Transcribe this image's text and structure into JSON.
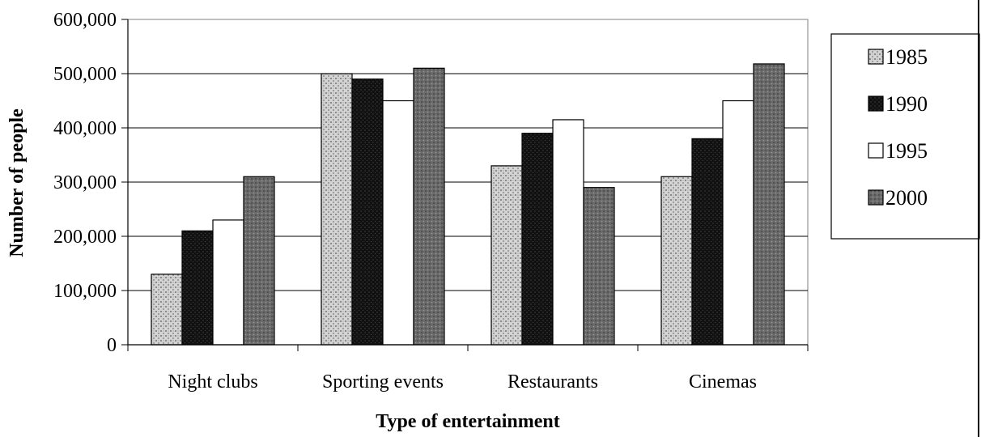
{
  "chart_data": {
    "type": "bar",
    "title": "",
    "xlabel": "Type of entertainment",
    "ylabel": "Number of people",
    "categories": [
      "Night clubs",
      "Sporting events",
      "Restaurants",
      "Cinemas"
    ],
    "series": [
      {
        "name": "1985",
        "values": [
          130000,
          500000,
          330000,
          310000
        ],
        "color": "#bdbdbd",
        "pattern": "light-dots"
      },
      {
        "name": "1990",
        "values": [
          210000,
          490000,
          390000,
          380000
        ],
        "color": "#1a1a1a",
        "pattern": "dark-dots"
      },
      {
        "name": "1995",
        "values": [
          230000,
          450000,
          415000,
          450000
        ],
        "color": "#ffffff",
        "pattern": "none"
      },
      {
        "name": "2000",
        "values": [
          310000,
          510000,
          290000,
          518000
        ],
        "color": "#707070",
        "pattern": "medium-dots"
      }
    ],
    "ylim": [
      0,
      600000
    ],
    "yticks": [
      "0",
      "100,000",
      "200,000",
      "300,000",
      "400,000",
      "500,000",
      "600,000"
    ],
    "ytick_values": [
      0,
      100000,
      200000,
      300000,
      400000,
      500000,
      600000
    ],
    "grid": true,
    "legend_position": "right"
  }
}
